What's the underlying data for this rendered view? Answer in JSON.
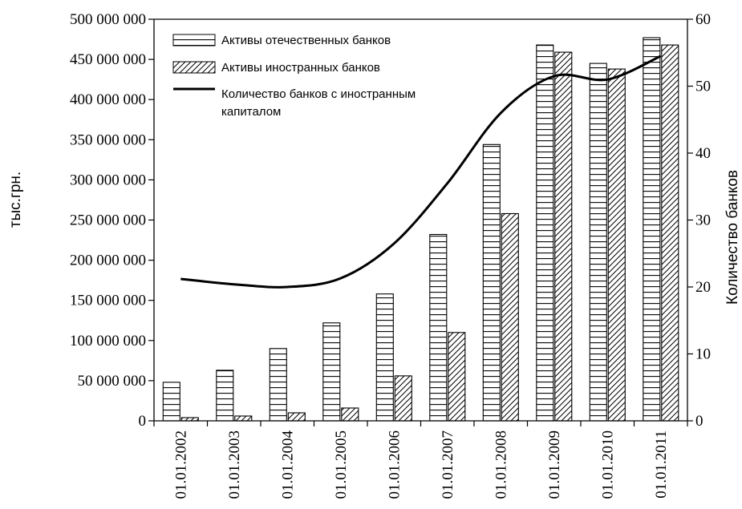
{
  "chart_data": {
    "type": "bar",
    "categories": [
      "01.01.2002",
      "01.01.2003",
      "01.01.2004",
      "01.01.2005",
      "01.01.2006",
      "01.01.2007",
      "01.01.2008",
      "01.01.2009",
      "01.01.2010",
      "01.01.2011"
    ],
    "series": [
      {
        "name": "Активы отечественных банков",
        "type": "bar",
        "axis": "left",
        "pattern": "horizontal-lines",
        "values": [
          48000000,
          63000000,
          90000000,
          122000000,
          158000000,
          232000000,
          344000000,
          468000000,
          445000000,
          477000000
        ]
      },
      {
        "name": "Активы иностранных банков",
        "type": "bar",
        "axis": "left",
        "pattern": "diagonal-hatch",
        "values": [
          4000000,
          6000000,
          10000000,
          16000000,
          56000000,
          110000000,
          258000000,
          459000000,
          438000000,
          468000000
        ]
      },
      {
        "name_lines": [
          "Количество банков с иностранным",
          "капиталом"
        ],
        "type": "line",
        "axis": "right",
        "values": [
          21.2,
          20.4,
          20.0,
          21.3,
          26.5,
          35.5,
          46.0,
          51.5,
          51.0,
          54.5
        ]
      }
    ],
    "ylabel": "тыс.грн.",
    "y2label": "Количество банков",
    "ylim": [
      0,
      500000000
    ],
    "y2lim": [
      0,
      60
    ],
    "yticks": [
      "0",
      "50 000 000",
      "100 000 000",
      "150 000 000",
      "200 000 000",
      "250 000 000",
      "300 000 000",
      "350 000 000",
      "400 000 000",
      "450 000 000",
      "500 000 000"
    ],
    "y2ticks": [
      "0",
      "10",
      "20",
      "30",
      "40",
      "50",
      "60"
    ],
    "grid": false,
    "legend_position": "top-left",
    "colors": {
      "bar_fill": "#ffffff",
      "stroke": "#000000",
      "line": "#000000"
    }
  }
}
